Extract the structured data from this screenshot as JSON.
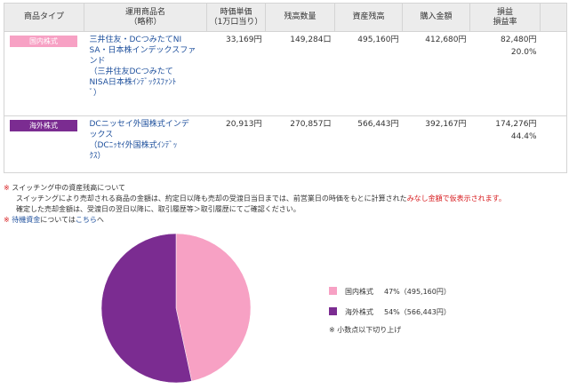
{
  "table": {
    "headers": {
      "product_type": "商品タイプ",
      "product_name_1": "運用商品名",
      "product_name_2": "（略称）",
      "unit_price_1": "時価単価",
      "unit_price_2": "（1万口当り）",
      "quantity": "残高数量",
      "asset_balance": "資産残高",
      "purchase_amount": "購入金額",
      "gain_loss_1": "損益",
      "gain_loss_2": "損益率"
    },
    "rows": [
      {
        "type_label": "国内株式",
        "type_color": "#f7a1c4",
        "name_lines": [
          "三井住友・DCつみたてNI",
          "SA・日本株インデックスファ",
          "ンド"
        ],
        "short_lines": [
          "（三井住友DCつみたて",
          "NISA日本株ｲﾝﾃﾞｯｸｽﾌｧﾝﾄ",
          "ﾞ）"
        ],
        "unit_price": "33,169円",
        "quantity": "149,284口",
        "asset_balance": "495,160円",
        "purchase_amount": "412,680円",
        "gain_loss": "82,480円",
        "gain_loss_rate": "20.0%"
      },
      {
        "type_label": "海外株式",
        "type_color": "#7b2c91",
        "name_lines": [
          "DCニッセイ外国株式インデ",
          "ックス"
        ],
        "short_lines": [
          "（DCﾆｯｾｲ外国株式ｲﾝﾃﾞｯ",
          "ｸｽ）"
        ],
        "unit_price": "20,913円",
        "quantity": "270,857口",
        "asset_balance": "566,443円",
        "purchase_amount": "392,167円",
        "gain_loss": "174,276円",
        "gain_loss_rate": "44.4%"
      }
    ]
  },
  "notes": {
    "mark": "※",
    "line1": "スイッチング中の資産残高について",
    "line2_a": "スイッチングにより売却される商品の金額は、約定日以降も売却の受渡日当日までは、前営業日の時価をもとに計算された",
    "line2_red": "みなし金額で仮表示されます。",
    "line3": "確定した売却金額は、受渡日の翌日以降に、取引履歴等＞取引履歴にてご確認ください。",
    "line4_link1": "待機資金",
    "line4_mid": "については",
    "line4_link2": "こちら",
    "line4_end": "へ"
  },
  "chart_data": {
    "type": "pie",
    "slices": [
      {
        "label": "国内株式",
        "percent": "47%",
        "amount": "（495,160円）",
        "value": 495160,
        "color": "#f7a1c4"
      },
      {
        "label": "海外株式",
        "percent": "54%",
        "amount": "（566,443円）",
        "value": 566443,
        "color": "#7b2c91"
      }
    ],
    "note": "※ 小数点以下切り上げ"
  }
}
